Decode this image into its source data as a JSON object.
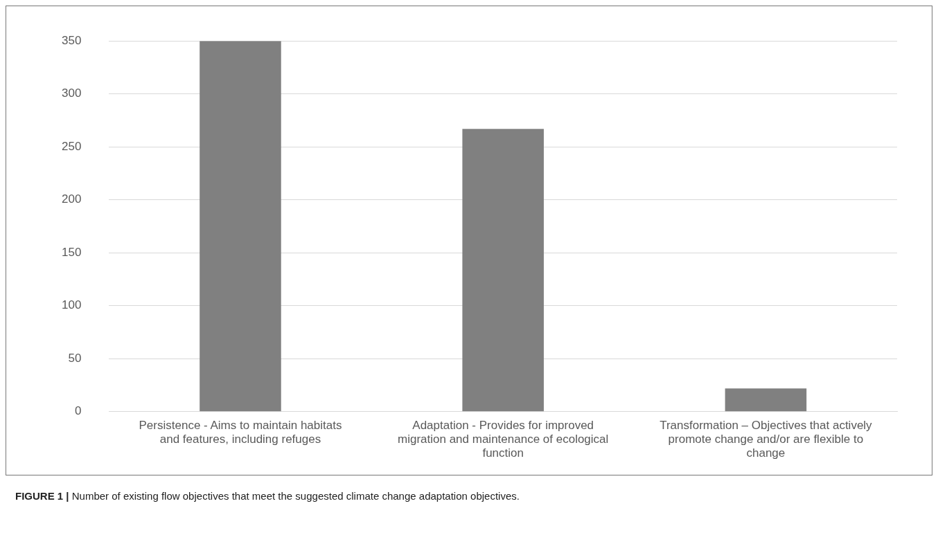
{
  "chart_data": {
    "type": "bar",
    "categories": [
      "Persistence - Aims to maintain habitats and features, including refuges",
      "Adaptation - Provides for improved migration and maintenance of ecological function",
      "Transformation – Objectives that actively promote change and/or are flexible to change"
    ],
    "values": [
      350,
      267,
      22
    ],
    "color": "#808080",
    "ylim": [
      0,
      350
    ],
    "yticks": [
      0,
      50,
      100,
      150,
      200,
      250,
      300,
      350
    ],
    "grid": "y",
    "annotations": [
      "FIGURE 1 | Number of existing flow objectives that meet the suggested climate change adaptation objectives."
    ]
  }
}
